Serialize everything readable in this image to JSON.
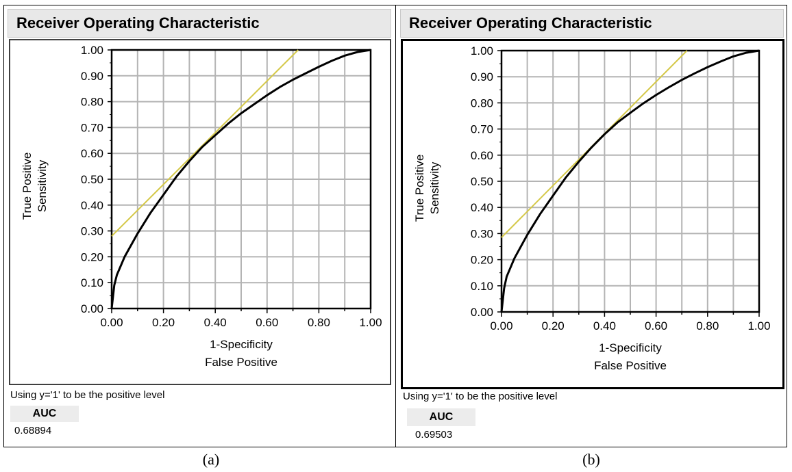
{
  "colors": {
    "curve": "#000000",
    "tangent": "#d4c847",
    "grid": "#b4b4b4",
    "title_bg": "#e8e8e8"
  },
  "panels": [
    {
      "caption": "(a)",
      "title": "Receiver Operating Characteristic",
      "note": "Using y='1' to be the positive level",
      "auc_label": "AUC",
      "auc_value": "0.68894"
    },
    {
      "caption": "(b)",
      "title": "Receiver Operating Characteristic",
      "note": "Using y='1' to be the positive level",
      "auc_label": "AUC",
      "auc_value": "0.69503"
    }
  ],
  "chart_data": [
    {
      "type": "line",
      "title": "Receiver Operating Characteristic",
      "xlabel": [
        "1-Specificity",
        "False Positive"
      ],
      "ylabel": [
        "True Positive",
        "Sensitivity"
      ],
      "xlim": [
        0,
        1
      ],
      "ylim": [
        0,
        1
      ],
      "x_ticks": [
        "0.00",
        "0.20",
        "0.40",
        "0.60",
        "0.80",
        "1.00"
      ],
      "y_ticks": [
        "0.00",
        "0.10",
        "0.20",
        "0.30",
        "0.40",
        "0.50",
        "0.60",
        "0.70",
        "0.80",
        "0.90",
        "1.00"
      ],
      "grid": true,
      "series": [
        {
          "x": [
            0,
            0.01,
            0.02,
            0.05,
            0.1,
            0.15,
            0.2,
            0.25,
            0.3,
            0.35,
            0.4,
            0.45,
            0.5,
            0.55,
            0.6,
            0.65,
            0.7,
            0.75,
            0.8,
            0.85,
            0.9,
            0.95,
            1.0
          ],
          "y": [
            0,
            0.09,
            0.13,
            0.2,
            0.29,
            0.37,
            0.44,
            0.51,
            0.57,
            0.625,
            0.67,
            0.715,
            0.755,
            0.79,
            0.825,
            0.857,
            0.885,
            0.91,
            0.935,
            0.958,
            0.978,
            0.992,
            1.0
          ]
        },
        {
          "x": [
            0,
            0.72
          ],
          "y": [
            0.28,
            1.0
          ]
        }
      ]
    },
    {
      "type": "line",
      "title": "Receiver Operating Characteristic",
      "xlabel": [
        "1-Specificity",
        "False Positive"
      ],
      "ylabel": [
        "True Positive",
        "Sensitivity"
      ],
      "xlim": [
        0,
        1
      ],
      "ylim": [
        0,
        1
      ],
      "x_ticks": [
        "0.00",
        "0.20",
        "0.40",
        "0.60",
        "0.80",
        "1.00"
      ],
      "y_ticks": [
        "0.00",
        "0.10",
        "0.20",
        "0.30",
        "0.40",
        "0.50",
        "0.60",
        "0.70",
        "0.80",
        "0.90",
        "1.00"
      ],
      "grid": true,
      "series": [
        {
          "x": [
            0,
            0.01,
            0.02,
            0.05,
            0.1,
            0.15,
            0.2,
            0.25,
            0.3,
            0.35,
            0.4,
            0.45,
            0.5,
            0.55,
            0.6,
            0.65,
            0.7,
            0.75,
            0.8,
            0.85,
            0.9,
            0.95,
            1.0
          ],
          "y": [
            0,
            0.09,
            0.135,
            0.205,
            0.295,
            0.375,
            0.445,
            0.515,
            0.575,
            0.63,
            0.68,
            0.725,
            0.762,
            0.798,
            0.83,
            0.86,
            0.888,
            0.913,
            0.937,
            0.958,
            0.978,
            0.992,
            1.0
          ]
        },
        {
          "x": [
            0,
            0.72
          ],
          "y": [
            0.285,
            1.0
          ]
        }
      ]
    }
  ]
}
